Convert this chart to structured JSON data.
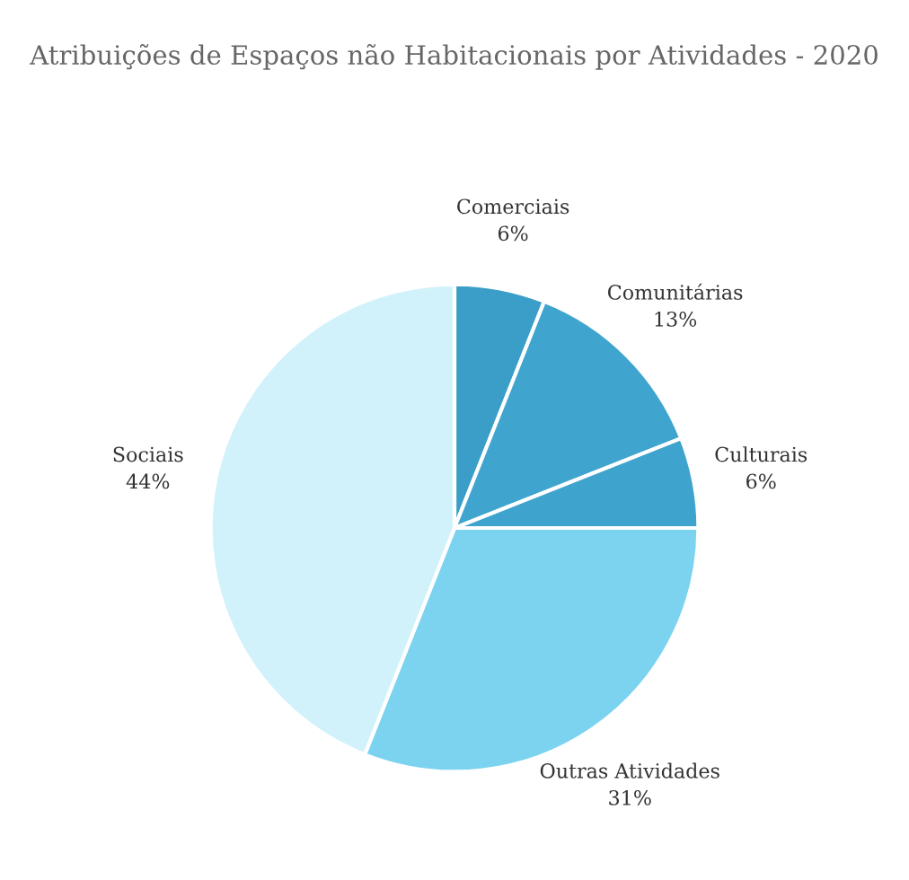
{
  "chart_data": {
    "type": "pie",
    "title": "Atribuições de Espaços não Habitacionais por Atividades - 2020",
    "categories": [
      "Comerciais",
      "Comunitárias",
      "Culturais",
      "Outras Atividades",
      "Sociais"
    ],
    "values": [
      6,
      13,
      6,
      31,
      44
    ],
    "colors": [
      "#3a9ec8",
      "#3fa5cf",
      "#3ea3cd",
      "#7cd3ef",
      "#d2f2fb"
    ],
    "value_labels": [
      "6%",
      "13%",
      "6%",
      "31%",
      "44%"
    ]
  }
}
